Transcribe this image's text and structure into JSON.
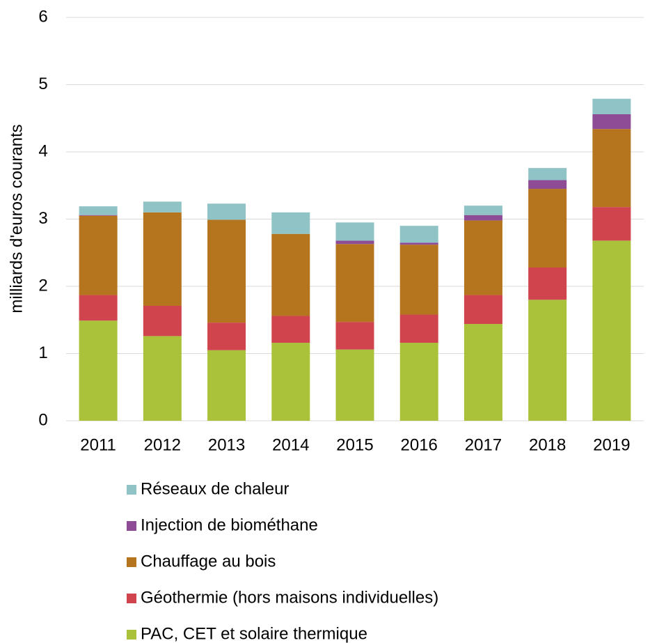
{
  "chart_data": {
    "type": "bar",
    "stacked": true,
    "y_label": "milliards d'euros courants",
    "categories": [
      "2011",
      "2012",
      "2013",
      "2014",
      "2015",
      "2016",
      "2017",
      "2018",
      "2019"
    ],
    "series": [
      {
        "name": "PAC, CET et solaire thermique",
        "color": "#a9c23a",
        "values": [
          1.49,
          1.26,
          1.05,
          1.16,
          1.06,
          1.16,
          1.44,
          1.8,
          2.68
        ]
      },
      {
        "name": "Géothermie (hors maisons individuelles)",
        "color": "#d0444e",
        "values": [
          0.38,
          0.45,
          0.41,
          0.4,
          0.41,
          0.42,
          0.43,
          0.48,
          0.5
        ]
      },
      {
        "name": "Chauffage au bois",
        "color": "#b5751f",
        "values": [
          1.18,
          1.39,
          1.53,
          1.22,
          1.16,
          1.04,
          1.11,
          1.17,
          1.16
        ]
      },
      {
        "name": "Injection de biométhane",
        "color": "#8e4b96",
        "values": [
          0.01,
          0,
          0,
          0,
          0.05,
          0.03,
          0.08,
          0.13,
          0.22
        ]
      },
      {
        "name": "Réseaux de chaleur",
        "color": "#8fc3c6",
        "values": [
          0.13,
          0.16,
          0.24,
          0.32,
          0.27,
          0.25,
          0.14,
          0.18,
          0.23
        ]
      }
    ],
    "ylim": [
      0,
      6
    ],
    "yticks": [
      0,
      1,
      2,
      3,
      4,
      5,
      6
    ],
    "grid": true
  }
}
